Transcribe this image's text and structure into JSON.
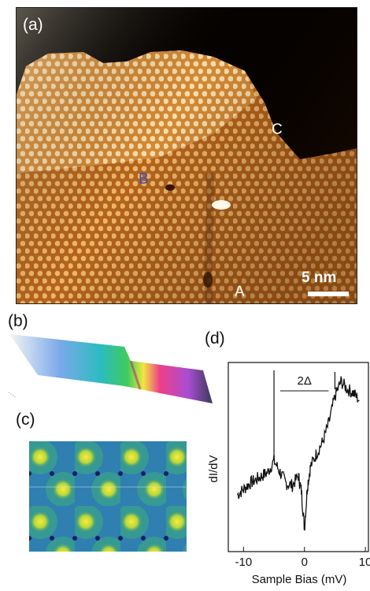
{
  "panel_a": {
    "label": "(a)",
    "marker_a": "A",
    "marker_b": "B",
    "marker_c": "C",
    "scale_bar": "5 nm"
  },
  "panel_b": {
    "label": "(b)"
  },
  "panel_c": {
    "label": "(c)"
  },
  "panel_d": {
    "label": "(d)"
  },
  "chart_data": {
    "type": "line",
    "xlabel": "Sample Bias (mV)",
    "ylabel": "dI/dV",
    "xlim": [
      -12.5,
      10.5
    ],
    "x_ticks": [
      -10,
      0,
      10
    ],
    "annotation": "2Δ",
    "gap_markers_x": [
      -5,
      5
    ],
    "series": [
      {
        "x": [
          -11,
          -10,
          -9,
          -8,
          -7,
          -6,
          -5,
          -4,
          -3,
          -2,
          -1,
          -0.5,
          0,
          0.5,
          1,
          2,
          3,
          4,
          5,
          6,
          7,
          8,
          9
        ],
        "values": [
          0.3,
          0.33,
          0.36,
          0.38,
          0.4,
          0.42,
          0.48,
          0.42,
          0.36,
          0.35,
          0.4,
          0.32,
          0.12,
          0.35,
          0.45,
          0.52,
          0.58,
          0.68,
          0.82,
          0.9,
          0.86,
          0.84,
          0.8
        ]
      }
    ]
  }
}
